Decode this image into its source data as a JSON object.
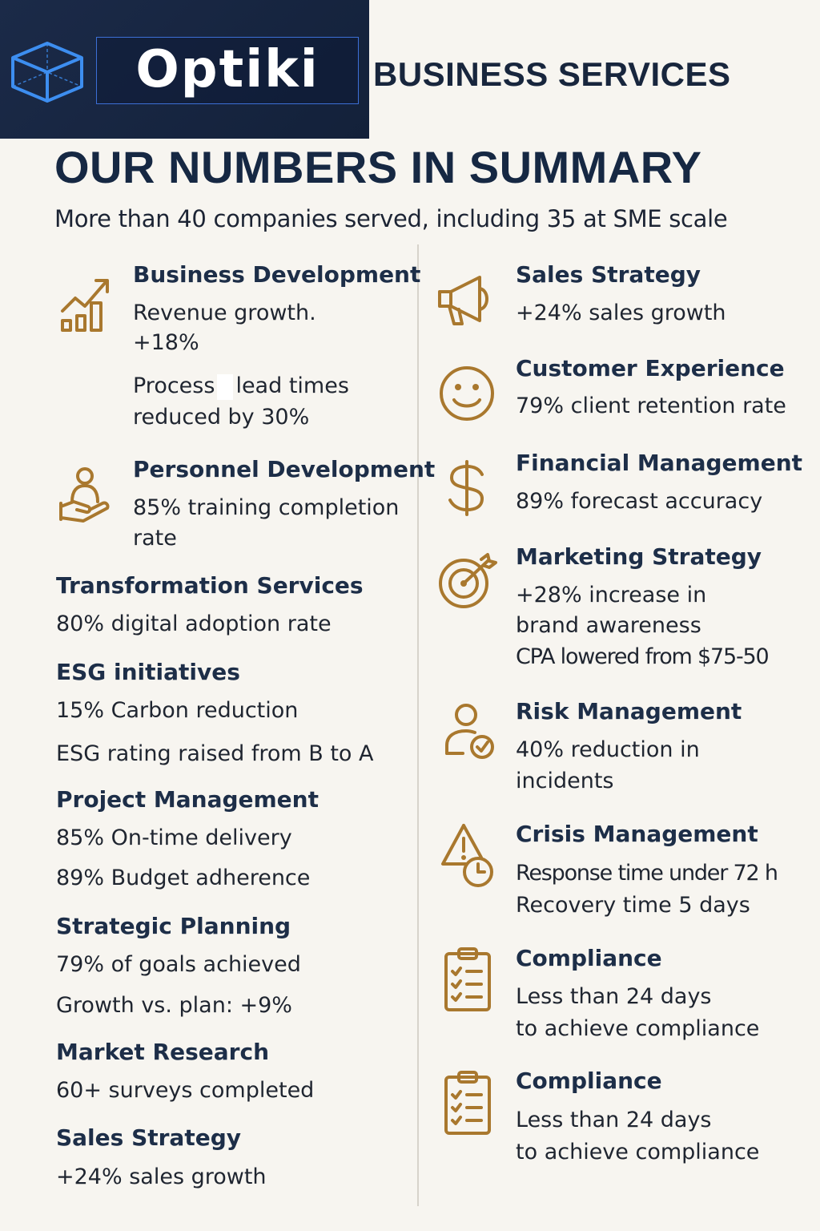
{
  "brand": {
    "logo_text": "Optiki",
    "subtitle": "BUSINESS SERVICES"
  },
  "header": {
    "title": "OUR NUMBERS IN SUMMARY",
    "subtitle": "More than 40 companies served, including 35 at SME scale"
  },
  "left": {
    "business_dev": {
      "title": "Business Development",
      "l1": "Revenue growth.",
      "l2": "+18%",
      "l3a": "Process",
      "l3b": "lead times",
      "l4": "reduced by 30%"
    },
    "personnel": {
      "title": "Personnel Development",
      "l1": "85% training completion",
      "l2": "rate"
    },
    "transformation": {
      "title": "Transformation Services",
      "l1": "80% digital adoption rate"
    },
    "esg": {
      "title": "ESG initiatives",
      "l1": "15% Carbon reduction",
      "l2": "ESG rating raised from B to A"
    },
    "project": {
      "title": "Project Management",
      "l1": "85% On-time delivery",
      "l2": "89% Budget adherence"
    },
    "strategic": {
      "title": "Strategic Planning",
      "l1": "79% of goals achieved",
      "l2": "Growth vs. plan: +9%"
    },
    "market": {
      "title": "Market Research",
      "l1": "60+ surveys completed"
    },
    "sales": {
      "title": "Sales Strategy",
      "l1": "+24% sales growth"
    }
  },
  "right": {
    "sales": {
      "title": "Sales Strategy",
      "l1": "+24% sales growth"
    },
    "customer": {
      "title": "Customer Experience",
      "l1": "79% client retention rate"
    },
    "financial": {
      "title": "Financial Management",
      "l1": "89% forecast accuracy"
    },
    "marketing": {
      "title": "Marketing Strategy",
      "l1": "+28% increase in",
      "l2": "brand awareness",
      "l3": "CPA lowered from $75-50"
    },
    "risk": {
      "title": "Risk Management",
      "l1": "40% reduction in",
      "l2": "incidents"
    },
    "crisis": {
      "title": "Crisis Management",
      "l1": "Response time under 72 h",
      "l2": "Recovery time 5 days"
    },
    "compliance1": {
      "title": "Compliance",
      "l1": "Less than 24 days",
      "l2": "to achieve compliance"
    },
    "compliance2": {
      "title": "Compliance",
      "l1": "Less than 24 days",
      "l2": "to achieve compliance"
    }
  },
  "icons": {
    "logo": "cube-icon",
    "business_dev": "growth-chart-icon",
    "personnel": "person-hand-icon",
    "sales": "megaphone-icon",
    "customer": "smiley-icon",
    "financial": "dollar-icon",
    "marketing": "target-icon",
    "risk": "user-check-icon",
    "crisis": "warning-clock-icon",
    "compliance": "checklist-icon"
  },
  "colors": {
    "accent": "#a9782e",
    "navy": "#162843",
    "logo_bg": "#1b2a48",
    "background": "#f7f5f0"
  }
}
